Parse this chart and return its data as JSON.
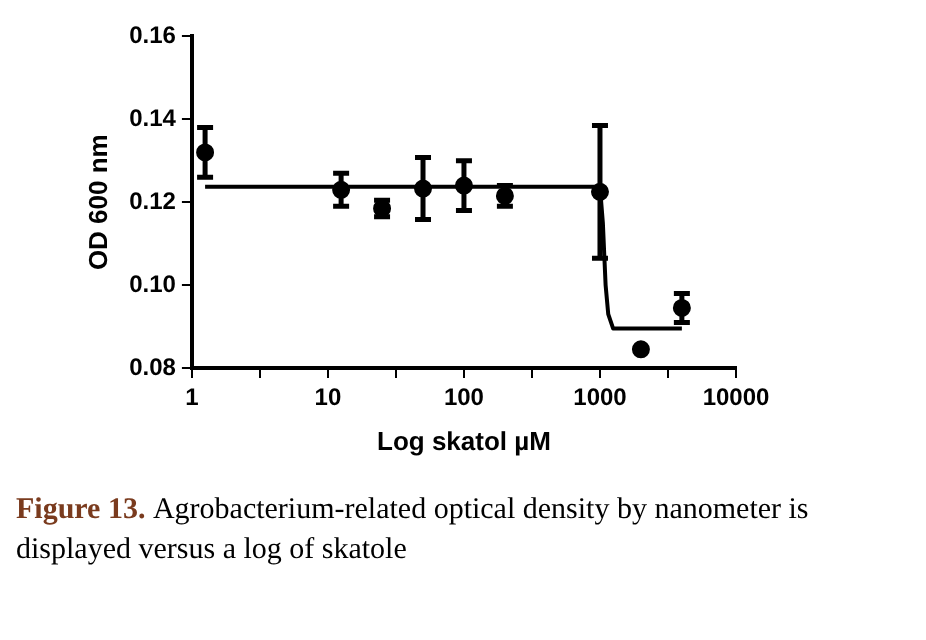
{
  "chart_data": {
    "type": "scatter",
    "xlabel": "Log skatol µM",
    "ylabel": "OD 600 nm",
    "log": "x",
    "xlim": [
      1,
      10000
    ],
    "xticks": [
      1,
      {
        "value": 3.162,
        "label": null
      },
      10,
      {
        "value": 31.62,
        "label": null
      },
      100,
      {
        "value": 316.2,
        "label": null
      },
      1000,
      {
        "value": 3162,
        "label": null
      },
      10000
    ],
    "ylim": [
      0.08,
      0.16
    ],
    "yticks": [
      0.08,
      {
        "value": 0.1,
        "label": "0.10"
      },
      0.12,
      0.14,
      0.16
    ],
    "grid": false,
    "legend": false,
    "series": [
      {
        "type": "scatter",
        "color": "#000000",
        "marker": "circle",
        "x": [
          1.25,
          12.5,
          25,
          50,
          100,
          200,
          1000,
          2000,
          4000
        ],
        "values": [
          0.132,
          0.123,
          0.1185,
          0.1233,
          0.124,
          0.1215,
          0.1225,
          0.0845,
          0.0945
        ],
        "errors": [
          0.006,
          0.004,
          0.002,
          0.0075,
          0.006,
          0.0025,
          0.016,
          null,
          0.0035
        ]
      },
      {
        "type": "line",
        "color": "#000000",
        "marker": "none",
        "line_style": "solid",
        "x": [
          1.25,
          1000,
          1050,
          1100,
          1150,
          1250,
          4000
        ],
        "values": [
          0.1237,
          0.1237,
          0.115,
          0.1,
          0.093,
          0.0895,
          0.0895
        ]
      }
    ],
    "annotations": [
      "Figure 13.",
      "Agrobacterium-related optical density by nanometer is displayed versus a log of skatole"
    ]
  }
}
